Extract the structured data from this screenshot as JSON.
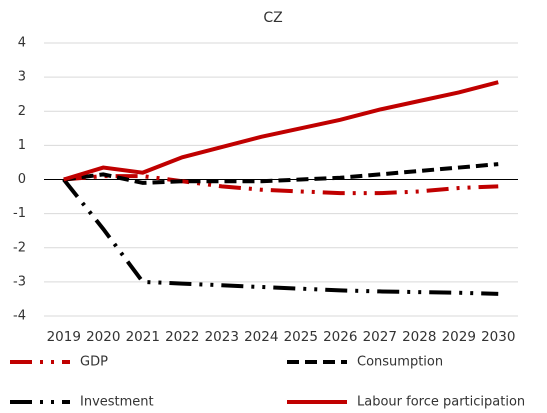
{
  "chart_data": {
    "type": "line",
    "title": "CZ",
    "categories": [
      "2019",
      "2020",
      "2021",
      "2022",
      "2023",
      "2024",
      "2025",
      "2026",
      "2027",
      "2028",
      "2029",
      "2030"
    ],
    "ylim": [
      -4,
      4
    ],
    "yticks": [
      -4,
      -3,
      -2,
      -1,
      0,
      1,
      2,
      3,
      4
    ],
    "grid": true,
    "series": [
      {
        "name": "GDP",
        "color": "#c00000",
        "style": "dashdot",
        "values": [
          0,
          0.1,
          0.1,
          -0.05,
          -0.2,
          -0.3,
          -0.35,
          -0.4,
          -0.4,
          -0.35,
          -0.25,
          -0.2
        ]
      },
      {
        "name": "Consumption",
        "color": "#000000",
        "style": "dashed",
        "values": [
          0,
          0.15,
          -0.1,
          -0.05,
          -0.05,
          -0.05,
          0,
          0.05,
          0.15,
          0.25,
          0.35,
          0.45
        ]
      },
      {
        "name": "Investment",
        "color": "#000000",
        "style": "dashdot",
        "values": [
          0,
          -1.45,
          -3.0,
          -3.05,
          -3.1,
          -3.15,
          -3.2,
          -3.25,
          -3.28,
          -3.3,
          -3.32,
          -3.35
        ]
      },
      {
        "name": "Labour force participation",
        "color": "#c00000",
        "style": "solid",
        "values": [
          0,
          0.35,
          0.2,
          0.65,
          0.95,
          1.25,
          1.5,
          1.75,
          2.05,
          2.3,
          2.55,
          2.85
        ]
      }
    ]
  }
}
